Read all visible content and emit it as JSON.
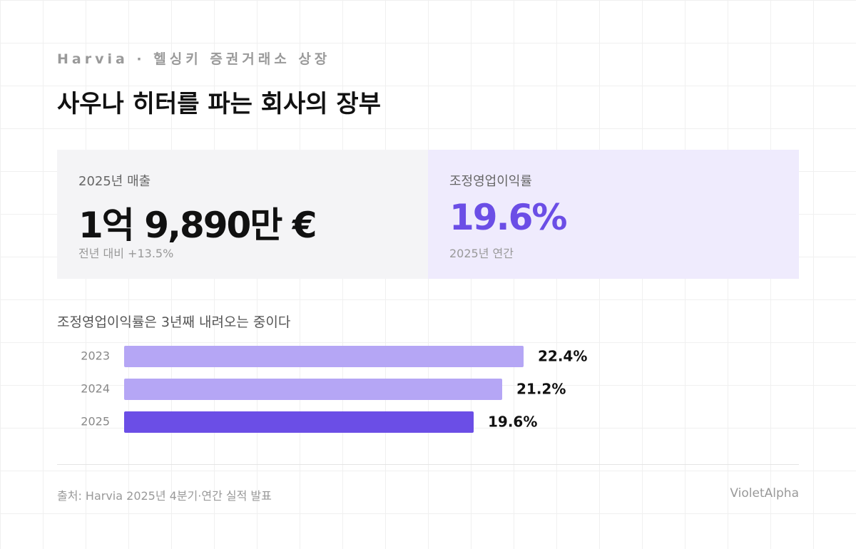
{
  "header": {
    "eyebrow": "Harvia · 헬싱키 증권거래소 상장",
    "title": "사우나 히터를 파는 회사의 장부"
  },
  "kpis": [
    {
      "label": "2025년 매출",
      "value": "1억 9,890만 €",
      "note": "전년 대비 +13.5%"
    },
    {
      "label": "조정영업이익률",
      "value": "19.6%",
      "note": "2025년 연간"
    }
  ],
  "chart_data": {
    "type": "hbar",
    "title": "조정영업이익률은 3년째 내려오는 중이다",
    "categories": [
      "2023",
      "2024",
      "2025"
    ],
    "values": [
      22.4,
      21.2,
      19.6
    ],
    "value_labels": [
      "22.4%",
      "21.2%",
      "19.6%"
    ],
    "colors": [
      "#b5a6f5",
      "#b5a6f5",
      "#6b4ee6"
    ]
  },
  "footer": {
    "source": "출처: Harvia 2025년 4분기·연간 실적 발표",
    "brand": "VioletAlpha"
  }
}
